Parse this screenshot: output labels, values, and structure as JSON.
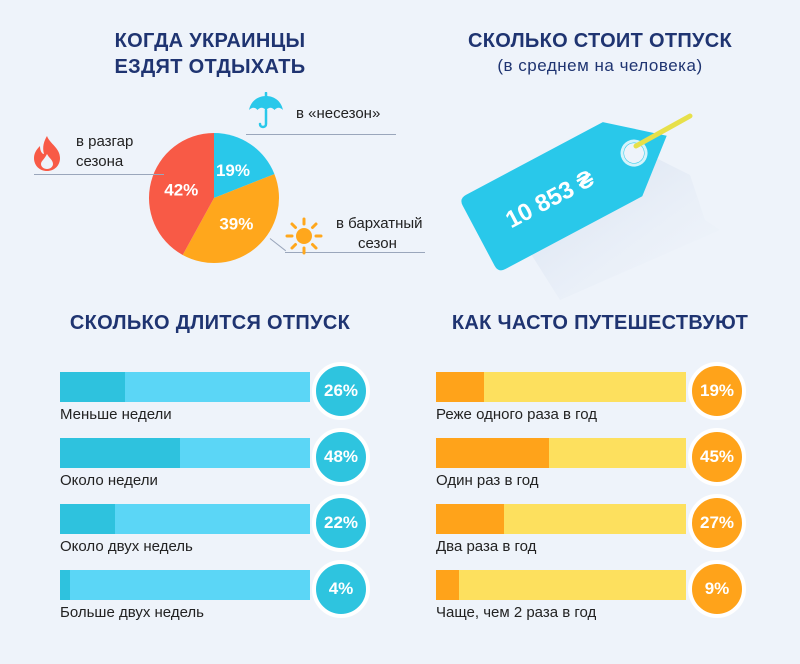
{
  "section_when": {
    "title_line1": "КОГДА УКРАИНЦЫ",
    "title_line2": "ЕЗДЯТ ОТДЫХАТЬ"
  },
  "section_cost": {
    "title": "СКОЛЬКО СТОИТ ОТПУСК",
    "subtitle": "(в среднем на человека)",
    "price": "10 853 ₴"
  },
  "section_duration": {
    "title": "СКОЛЬКО ДЛИТСЯ ОТПУСК"
  },
  "section_frequency": {
    "title": "КАК ЧАСТО ПУТЕШЕСТВУЮТ"
  },
  "icons": [
    "fire-icon",
    "umbrella-icon",
    "sun-icon",
    "price-tag-icon"
  ],
  "colors": {
    "red": "#f85a46",
    "blue": "#29c8ea",
    "orange": "#ffa71c",
    "navy": "#1f3471",
    "light_blue": "#5bd6f6",
    "light_yellow": "#fde05e"
  },
  "chart_data": [
    {
      "type": "pie",
      "slices": [
        {
          "label_line1": "в разгар",
          "label_line2": "сезона",
          "value": 42,
          "display": "42%",
          "color": "#f85a46"
        },
        {
          "label_line1": "в «несезон»",
          "label_line2": "",
          "value": 19,
          "display": "19%",
          "color": "#29c8ea"
        },
        {
          "label_line1": "в бархатный",
          "label_line2": "сезон",
          "value": 39,
          "display": "39%",
          "color": "#ffa71c"
        }
      ]
    },
    {
      "type": "bar",
      "orientation": "horizontal",
      "categories": [
        "Меньше недели",
        "Около недели",
        "Около двух недель",
        "Больше двух недель"
      ],
      "values": [
        26,
        48,
        22,
        4
      ],
      "display": [
        "26%",
        "48%",
        "22%",
        "4%"
      ],
      "xlim": [
        0,
        100
      ]
    },
    {
      "type": "bar",
      "orientation": "horizontal",
      "categories": [
        "Реже одного раза в год",
        "Один раз в год",
        "Два раза в год",
        "Чаще, чем 2 раза в год"
      ],
      "values": [
        19,
        45,
        27,
        9
      ],
      "display": [
        "19%",
        "45%",
        "27%",
        "9%"
      ],
      "xlim": [
        0,
        100
      ]
    }
  ]
}
